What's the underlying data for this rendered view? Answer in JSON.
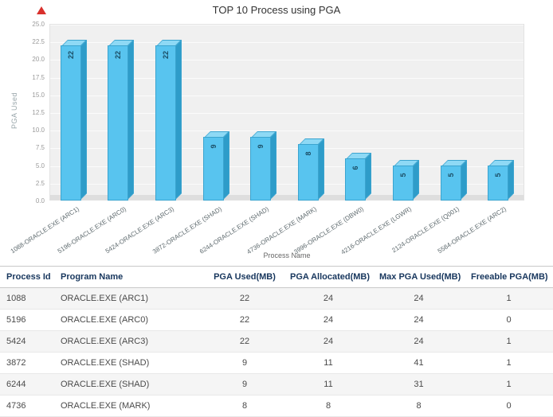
{
  "colors": {
    "bar_front": "#58c4ef",
    "bar_top": "#8ed9f5",
    "bar_side": "#2e9cc9",
    "bar_edge": "#3ba4cf",
    "alert": "#d9302c"
  },
  "icons": {
    "alert": "red-triangle"
  },
  "chart_data": {
    "type": "bar",
    "title": "TOP 10 Process using PGA",
    "xlabel": "Process Name",
    "ylabel": "PGA Used",
    "ylim": [
      0,
      25
    ],
    "ytick_step": 2.5,
    "ytick_labels": [
      "0.0",
      "2.5",
      "5.0",
      "7.5",
      "10.0",
      "12.5",
      "15.0",
      "17.5",
      "20.0",
      "22.5",
      "25.0"
    ],
    "grid": true,
    "legend": "none",
    "categories": [
      "1088-ORACLE.EXE (ARC1)",
      "5196-ORACLE.EXE (ARC0)",
      "5424-ORACLE.EXE (ARC3)",
      "3872-ORACLE.EXE (SHAD)",
      "6244-ORACLE.EXE (SHAD)",
      "4736-ORACLE.EXE (MARK)",
      "3996-ORACLE.EXE (DBW0)",
      "4216-ORACLE.EXE (LGWR)",
      "2124-ORACLE.EXE (Q001)",
      "5584-ORACLE.EXE (ARC2)"
    ],
    "values": [
      22,
      22,
      22,
      9,
      9,
      8,
      6,
      5,
      5,
      5
    ]
  },
  "table": {
    "columns": [
      "Process Id",
      "Program Name",
      "PGA Used(MB)",
      "PGA Allocated(MB)",
      "Max PGA Used(MB)",
      "Freeable PGA(MB)"
    ],
    "rows": [
      [
        "1088",
        "ORACLE.EXE (ARC1)",
        "22",
        "24",
        "24",
        "1"
      ],
      [
        "5196",
        "ORACLE.EXE (ARC0)",
        "22",
        "24",
        "24",
        "0"
      ],
      [
        "5424",
        "ORACLE.EXE (ARC3)",
        "22",
        "24",
        "24",
        "1"
      ],
      [
        "3872",
        "ORACLE.EXE (SHAD)",
        "9",
        "11",
        "41",
        "1"
      ],
      [
        "6244",
        "ORACLE.EXE (SHAD)",
        "9",
        "11",
        "31",
        "1"
      ],
      [
        "4736",
        "ORACLE.EXE (MARK)",
        "8",
        "8",
        "8",
        "0"
      ]
    ]
  }
}
